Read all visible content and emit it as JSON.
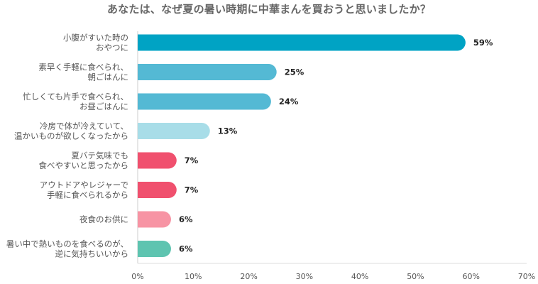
{
  "chart_data": {
    "type": "bar",
    "orientation": "horizontal",
    "title": "あなたは、なぜ夏の暑い時期に中華まんを買おうと思いましたか？",
    "categories": [
      [
        "小腹がすいた時の",
        "おやつに"
      ],
      [
        "素早く手軽に食べられ、",
        "朝ごはんに"
      ],
      [
        "忙しくても片手で食べられ、",
        "お昼ごはんに"
      ],
      [
        "冷房で体が冷えていて、",
        "温かいものが欲しくなったから"
      ],
      [
        "夏バテ気味でも",
        "食べやすいと思ったから"
      ],
      [
        "アウトドアやレジャーで",
        "手軽に食べられるから"
      ],
      [
        "夜食のお供に"
      ],
      [
        "暑い中で熱いものを食べるのが、",
        "逆に気持ちいいから"
      ]
    ],
    "values": [
      59,
      25,
      24,
      13,
      7,
      7,
      6,
      6
    ],
    "value_labels": [
      "59%",
      "25%",
      "24%",
      "13%",
      "7%",
      "7%",
      "6%",
      "6%"
    ],
    "bar_colors": [
      "#00a3c4",
      "#54b9d4",
      "#54b9d4",
      "#a8dde8",
      "#f0506e",
      "#f0506e",
      "#f794a4",
      "#5ec4b0"
    ],
    "xlim": [
      0,
      70
    ],
    "xticks": [
      0,
      10,
      20,
      30,
      40,
      50,
      60,
      70
    ],
    "xtick_labels": [
      "0%",
      "10%",
      "20%",
      "30%",
      "40%",
      "50%",
      "60%",
      "70%"
    ],
    "xlabel": "",
    "ylabel": "",
    "grid": false,
    "legend": "none"
  }
}
